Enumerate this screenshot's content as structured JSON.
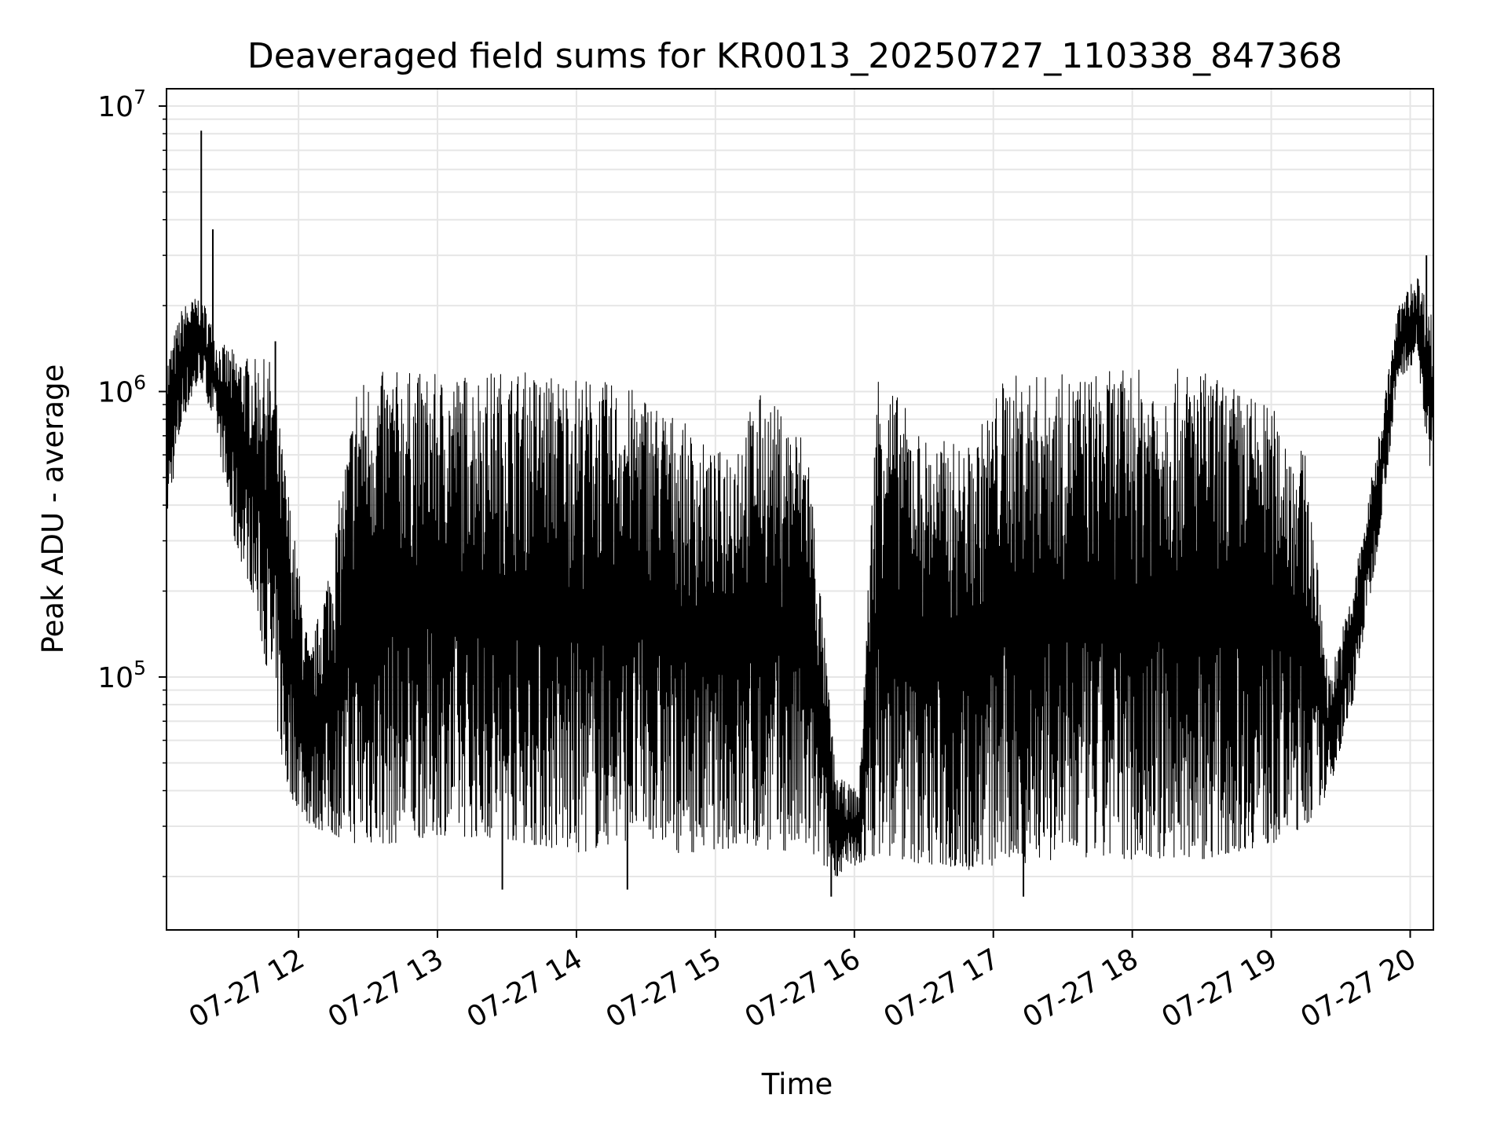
{
  "chart_data": {
    "type": "line",
    "title": "Deaveraged field sums for KR0013_20250727_110338_847368",
    "xlabel": "Time",
    "ylabel": "Peak ADU - average",
    "y_scale": "log",
    "ylim": [
      13000,
      11500000
    ],
    "xlim": [
      "2025-07-27 11:03",
      "2025-07-27 20:10"
    ],
    "x_ticks": [
      "07-27 12",
      "07-27 13",
      "07-27 14",
      "07-27 15",
      "07-27 16",
      "07-27 17",
      "07-27 18",
      "07-27 19",
      "07-27 20"
    ],
    "x_tick_times": [
      "2025-07-27 12:00",
      "2025-07-27 13:00",
      "2025-07-27 14:00",
      "2025-07-27 15:00",
      "2025-07-27 16:00",
      "2025-07-27 17:00",
      "2025-07-27 18:00",
      "2025-07-27 19:00",
      "2025-07-27 20:00"
    ],
    "y_ticks": [
      {
        "value": 100000,
        "base": "10",
        "exp": "5"
      },
      {
        "value": 1000000,
        "base": "10",
        "exp": "6"
      },
      {
        "value": 10000000,
        "base": "10",
        "exp": "7"
      }
    ],
    "grid": true,
    "line_color": "#000000",
    "grid_color": "#e6e6e6",
    "series": [
      {
        "envelope": [
          {
            "t": "2025-07-27 11:03",
            "low": 350000,
            "high": 1300000
          },
          {
            "t": "2025-07-27 11:10",
            "low": 800000,
            "high": 2000000
          },
          {
            "t": "2025-07-27 11:18",
            "low": 1100000,
            "high": 2200000
          },
          {
            "t": "2025-07-27 11:25",
            "low": 700000,
            "high": 1500000
          },
          {
            "t": "2025-07-27 11:32",
            "low": 300000,
            "high": 1400000
          },
          {
            "t": "2025-07-27 11:40",
            "low": 200000,
            "high": 1300000
          },
          {
            "t": "2025-07-27 11:48",
            "low": 90000,
            "high": 1300000
          },
          {
            "t": "2025-07-27 11:55",
            "low": 40000,
            "high": 500000
          },
          {
            "t": "2025-07-27 12:05",
            "low": 30000,
            "high": 120000
          },
          {
            "t": "2025-07-27 12:15",
            "low": 28000,
            "high": 300000
          },
          {
            "t": "2025-07-27 12:25",
            "low": 26000,
            "high": 1100000
          },
          {
            "t": "2025-07-27 12:40",
            "low": 26000,
            "high": 1200000
          },
          {
            "t": "2025-07-27 13:00",
            "low": 28000,
            "high": 1150000
          },
          {
            "t": "2025-07-27 13:30",
            "low": 27000,
            "high": 1200000
          },
          {
            "t": "2025-07-27 14:00",
            "low": 24000,
            "high": 1150000
          },
          {
            "t": "2025-07-27 14:30",
            "low": 28000,
            "high": 1000000
          },
          {
            "t": "2025-07-27 14:45",
            "low": 24000,
            "high": 800000
          },
          {
            "t": "2025-07-27 15:00",
            "low": 25000,
            "high": 600000
          },
          {
            "t": "2025-07-27 15:20",
            "low": 25000,
            "high": 1000000
          },
          {
            "t": "2025-07-27 15:40",
            "low": 24000,
            "high": 700000
          },
          {
            "t": "2025-07-27 15:52",
            "low": 20000,
            "high": 45000
          },
          {
            "t": "2025-07-27 16:02",
            "low": 22000,
            "high": 40000
          },
          {
            "t": "2025-07-27 16:10",
            "low": 24000,
            "high": 1250000
          },
          {
            "t": "2025-07-27 16:30",
            "low": 22000,
            "high": 700000
          },
          {
            "t": "2025-07-27 16:50",
            "low": 21000,
            "high": 650000
          },
          {
            "t": "2025-07-27 17:05",
            "low": 22000,
            "high": 1150000
          },
          {
            "t": "2025-07-27 17:30",
            "low": 23000,
            "high": 1150000
          },
          {
            "t": "2025-07-27 18:00",
            "low": 23000,
            "high": 1200000
          },
          {
            "t": "2025-07-27 18:30",
            "low": 23000,
            "high": 1200000
          },
          {
            "t": "2025-07-27 19:00",
            "low": 26000,
            "high": 900000
          },
          {
            "t": "2025-07-27 19:15",
            "low": 30000,
            "high": 600000
          },
          {
            "t": "2025-07-27 19:25",
            "low": 40000,
            "high": 100000
          },
          {
            "t": "2025-07-27 19:35",
            "low": 80000,
            "high": 200000
          },
          {
            "t": "2025-07-27 19:45",
            "low": 250000,
            "high": 600000
          },
          {
            "t": "2025-07-27 19:55",
            "low": 1100000,
            "high": 2000000
          },
          {
            "t": "2025-07-27 20:03",
            "low": 1300000,
            "high": 2600000
          },
          {
            "t": "2025-07-27 20:10",
            "low": 400000,
            "high": 1800000
          }
        ],
        "spikes": [
          {
            "t": "2025-07-27 11:18",
            "value": 8200000
          },
          {
            "t": "2025-07-27 11:23",
            "value": 3700000
          },
          {
            "t": "2025-07-27 11:50",
            "value": 1500000
          },
          {
            "t": "2025-07-27 15:50",
            "value": 17000
          },
          {
            "t": "2025-07-27 17:13",
            "value": 17000
          },
          {
            "t": "2025-07-27 13:28",
            "value": 18000
          },
          {
            "t": "2025-07-27 14:22",
            "value": 18000
          },
          {
            "t": "2025-07-27 20:07",
            "value": 3000000
          }
        ]
      }
    ]
  }
}
